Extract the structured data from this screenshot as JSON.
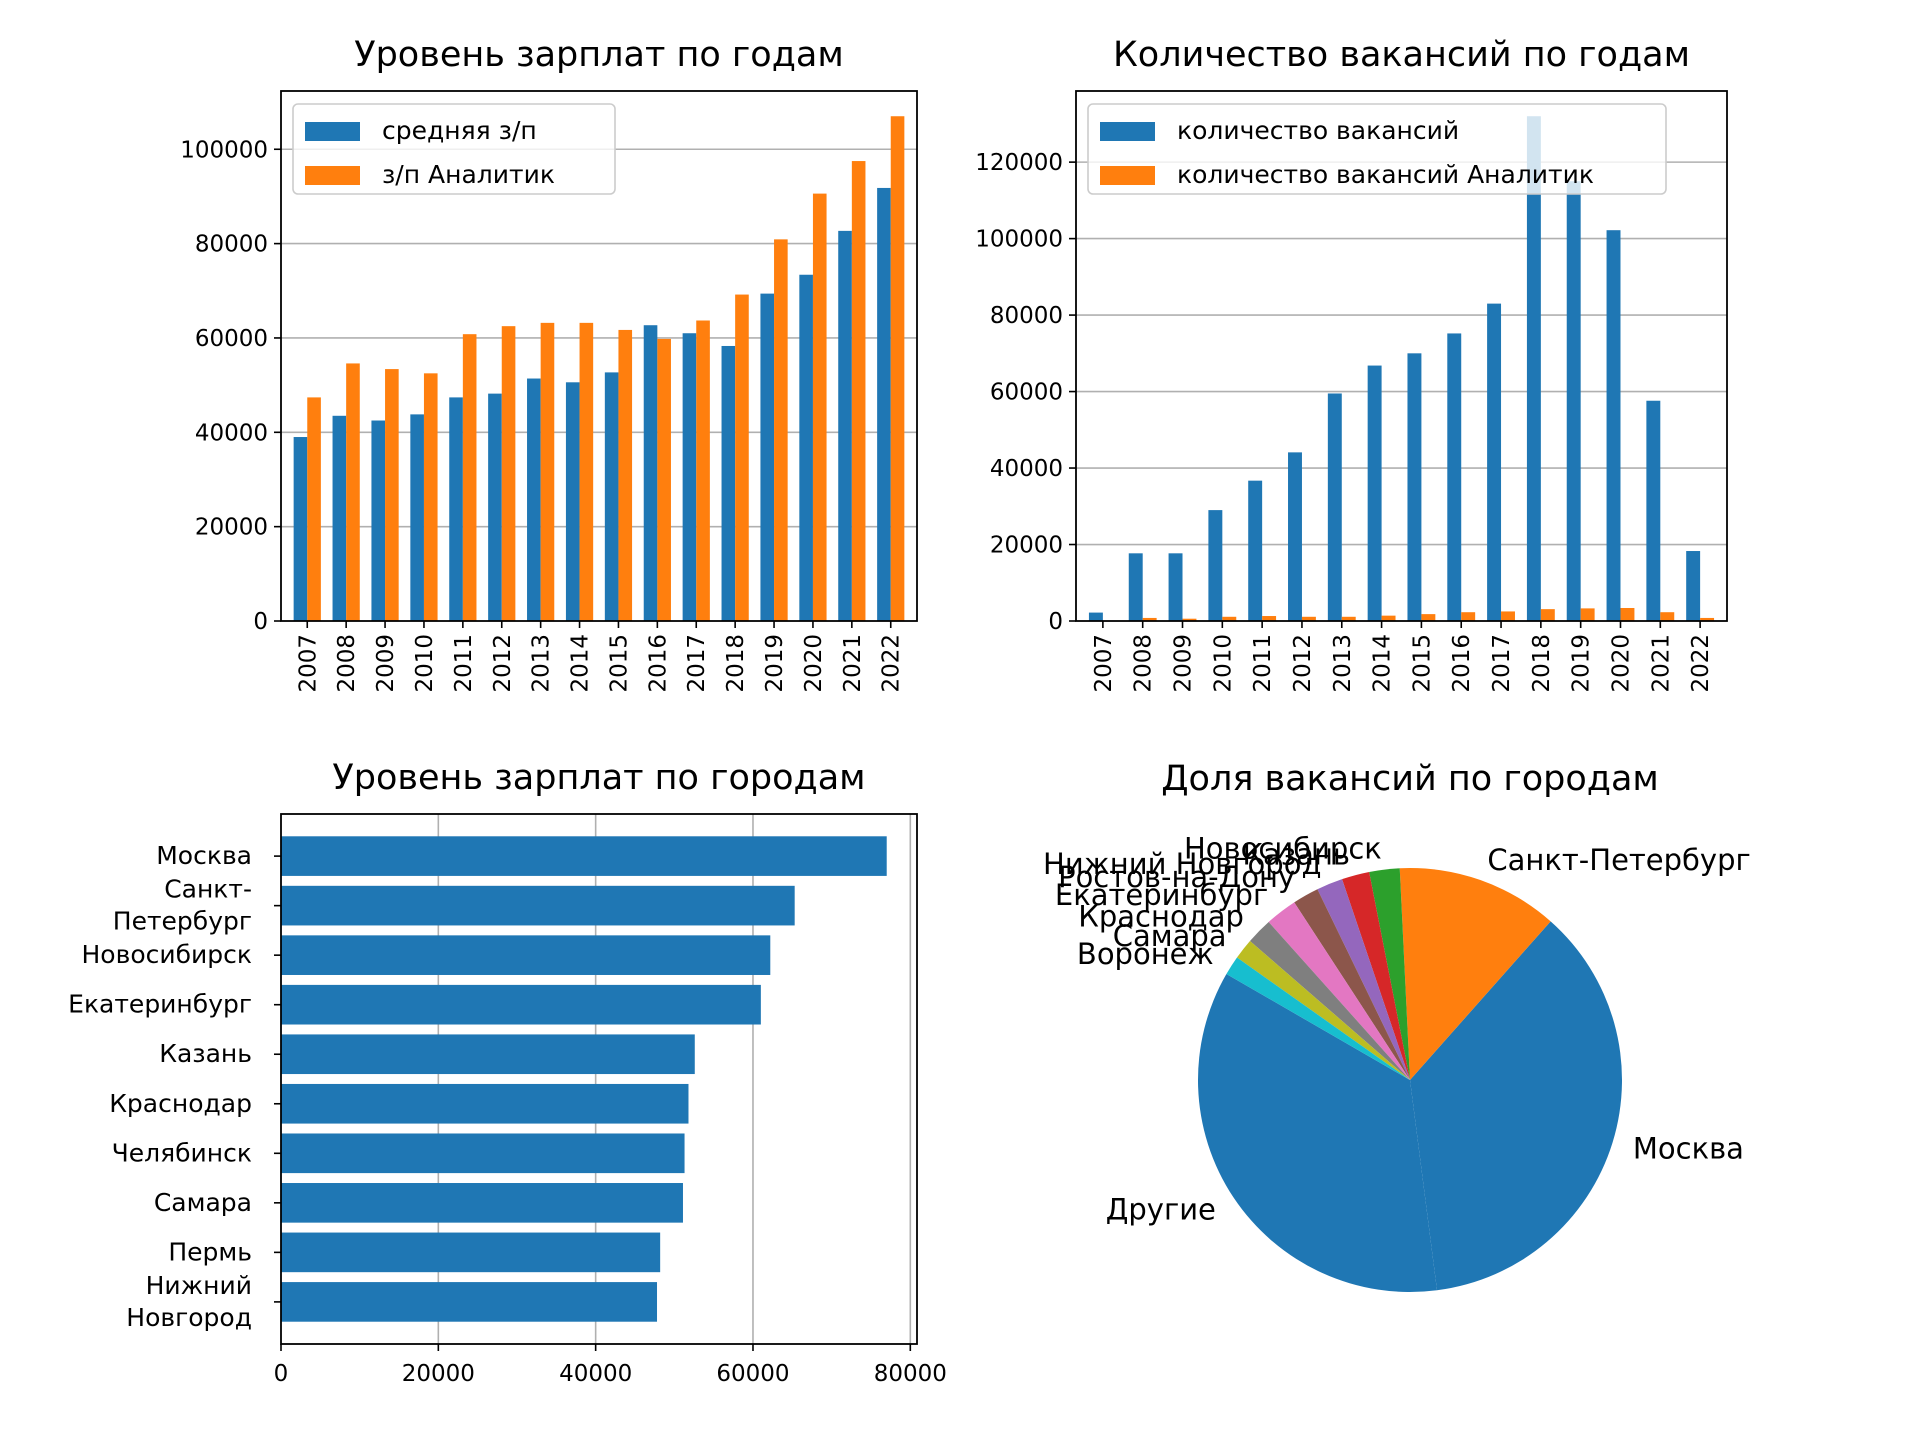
{
  "chart_data": [
    {
      "id": "salary-by-year",
      "type": "bar",
      "title": "Уровень зарплат по годам",
      "categories": [
        "2007",
        "2008",
        "2009",
        "2010",
        "2011",
        "2012",
        "2013",
        "2014",
        "2015",
        "2016",
        "2017",
        "2018",
        "2019",
        "2020",
        "2021",
        "2022"
      ],
      "series": [
        {
          "name": "средняя з/п",
          "color": "#1f77b4",
          "values": [
            39000,
            43500,
            42500,
            43800,
            47400,
            48200,
            51400,
            50600,
            52700,
            62700,
            61000,
            58300,
            69400,
            73400,
            82700,
            91800
          ]
        },
        {
          "name": "з/п Аналитик",
          "color": "#ff7f0e",
          "values": [
            47400,
            54600,
            53400,
            52500,
            60800,
            62500,
            63200,
            63200,
            61700,
            59800,
            63700,
            69200,
            80900,
            90600,
            97500,
            107000
          ]
        }
      ],
      "yticks": [
        0,
        20000,
        40000,
        60000,
        80000,
        100000
      ],
      "ylim": [
        0,
        112350
      ],
      "grid": "y",
      "legend": "upper-left"
    },
    {
      "id": "vacancies-by-year",
      "type": "bar",
      "title": "Количество вакансий по годам",
      "categories": [
        "2007",
        "2008",
        "2009",
        "2010",
        "2011",
        "2012",
        "2013",
        "2014",
        "2015",
        "2016",
        "2017",
        "2018",
        "2019",
        "2020",
        "2021",
        "2022"
      ],
      "series": [
        {
          "name": "количество вакансий",
          "color": "#1f77b4",
          "values": [
            2200,
            17700,
            17700,
            29000,
            36700,
            44100,
            59500,
            66800,
            70000,
            75200,
            83000,
            132000,
            115000,
            102200,
            57600,
            18300
          ]
        },
        {
          "name": "количество вакансий Аналитик",
          "color": "#ff7f0e",
          "values": [
            100,
            800,
            600,
            1100,
            1300,
            1100,
            1100,
            1400,
            1800,
            2300,
            2500,
            3100,
            3300,
            3400,
            2300,
            800
          ]
        }
      ],
      "yticks": [
        0,
        20000,
        40000,
        60000,
        80000,
        100000,
        120000
      ],
      "ylim": [
        0,
        138600
      ],
      "grid": "y",
      "legend": "upper-left"
    },
    {
      "id": "salary-by-city",
      "type": "barh",
      "title": "Уровень зарплат по городам",
      "categories": [
        "Москва",
        "Санкт-Петербург",
        "Новосибирск",
        "Екатеринбург",
        "Казань",
        "Краснодар",
        "Челябинск",
        "Самара",
        "Пермь",
        "Нижний Новгород"
      ],
      "category_lines": [
        [
          "Москва"
        ],
        [
          "Санкт-",
          "Петербург"
        ],
        [
          "Новосибирск"
        ],
        [
          "Екатеринбург"
        ],
        [
          "Казань"
        ],
        [
          "Краснодар"
        ],
        [
          "Челябинск"
        ],
        [
          "Самара"
        ],
        [
          "Пермь"
        ],
        [
          "Нижний",
          "Новгород"
        ]
      ],
      "values": [
        77000,
        65300,
        62200,
        61000,
        52600,
        51800,
        51300,
        51100,
        48200,
        47800
      ],
      "color": "#1f77b4",
      "xticks": [
        0,
        20000,
        40000,
        60000,
        80000
      ],
      "xlim": [
        0,
        80850
      ],
      "grid": "x"
    },
    {
      "id": "vacancy-share-by-city",
      "type": "pie",
      "title": "Доля вакансий по городам",
      "labels": [
        "Другие",
        "Москва",
        "Санкт-Петербург",
        "Новосибирск",
        "Казань",
        "Нижний Новгород",
        "Ростов-на-Дону",
        "Екатеринбург",
        "Краснодар",
        "Самара",
        "Воронеж"
      ],
      "values": [
        33.6,
        34.6,
        11.7,
        2.2,
        2.0,
        1.9,
        1.9,
        2.3,
        1.9,
        1.5,
        1.4
      ],
      "colors": [
        "#1f77b4",
        "#1f77b4",
        "#ff7f0e",
        "#2ca02c",
        "#d62728",
        "#9467bd",
        "#8c564b",
        "#e377c2",
        "#7f7f7f",
        "#bcbd22",
        "#17becf"
      ]
    }
  ]
}
